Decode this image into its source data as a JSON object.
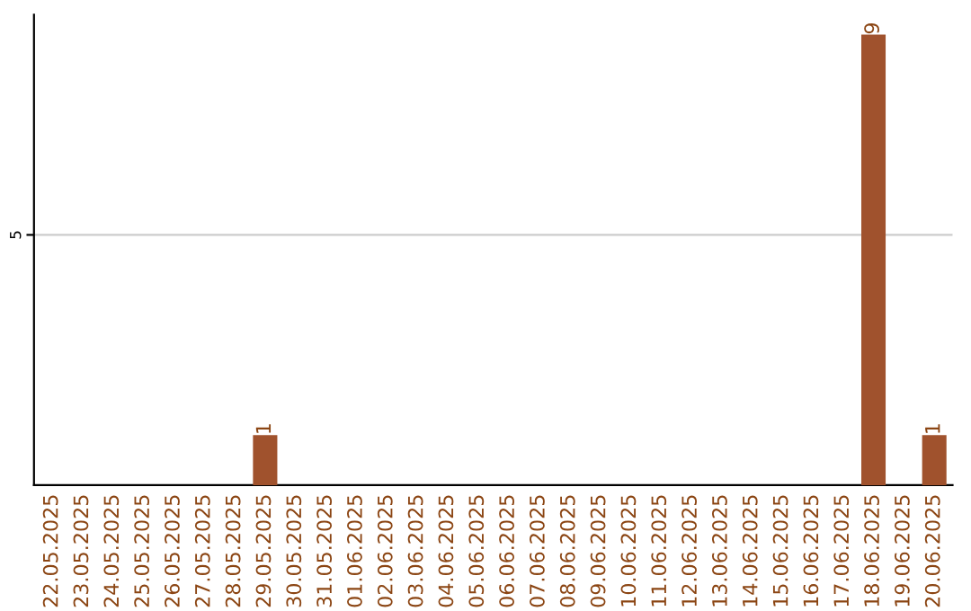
{
  "chart_data": {
    "type": "bar",
    "categories": [
      "22.05.2025",
      "23.05.2025",
      "24.05.2025",
      "25.05.2025",
      "26.05.2025",
      "27.05.2025",
      "28.05.2025",
      "29.05.2025",
      "30.05.2025",
      "31.05.2025",
      "01.06.2025",
      "02.06.2025",
      "03.06.2025",
      "04.06.2025",
      "05.06.2025",
      "06.06.2025",
      "07.06.2025",
      "08.06.2025",
      "09.06.2025",
      "10.06.2025",
      "11.06.2025",
      "12.06.2025",
      "13.06.2025",
      "14.06.2025",
      "15.06.2025",
      "16.06.2025",
      "17.06.2025",
      "18.06.2025",
      "19.06.2025",
      "20.06.2025"
    ],
    "values": [
      0,
      0,
      0,
      0,
      0,
      0,
      0,
      1,
      0,
      0,
      0,
      0,
      0,
      0,
      0,
      0,
      0,
      0,
      0,
      0,
      0,
      0,
      0,
      0,
      0,
      0,
      0,
      9,
      0,
      1
    ],
    "value_labels": [
      null,
      null,
      null,
      null,
      null,
      null,
      null,
      "1",
      null,
      null,
      null,
      null,
      null,
      null,
      null,
      null,
      null,
      null,
      null,
      null,
      null,
      null,
      null,
      null,
      null,
      null,
      null,
      "9",
      null,
      "1"
    ],
    "color": "#a0522d",
    "ylim": [
      0,
      9.4
    ],
    "yticks": [
      5
    ],
    "grid": "y"
  }
}
